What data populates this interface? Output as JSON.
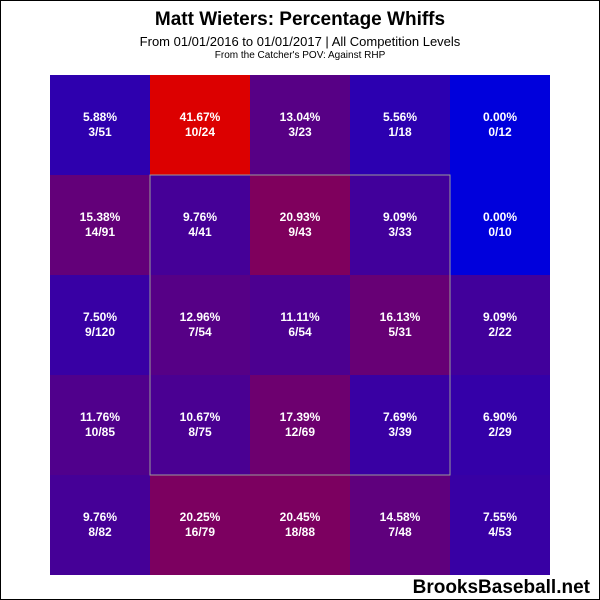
{
  "header": {
    "title": "Matt Wieters: Percentage Whiffs",
    "subtitle": "From 01/01/2016 to 01/01/2017 | All Competition Levels",
    "note": "From the Catcher's POV:  Against RHP"
  },
  "footer": {
    "brand": "BrooksBaseball.net"
  },
  "chart_data": {
    "type": "heatmap",
    "title": "Matt Wieters: Percentage Whiffs",
    "rows": 5,
    "cols": 5,
    "strike_zone": {
      "row_start": 1,
      "row_end": 3,
      "col_start": 1,
      "col_end": 3
    },
    "cells": [
      [
        {
          "pct": "5.88%",
          "frac": "3/51",
          "value": 5.88
        },
        {
          "pct": "41.67%",
          "frac": "10/24",
          "value": 41.67
        },
        {
          "pct": "13.04%",
          "frac": "3/23",
          "value": 13.04
        },
        {
          "pct": "5.56%",
          "frac": "1/18",
          "value": 5.56
        },
        {
          "pct": "0.00%",
          "frac": "0/12",
          "value": 0.0
        }
      ],
      [
        {
          "pct": "15.38%",
          "frac": "14/91",
          "value": 15.38
        },
        {
          "pct": "9.76%",
          "frac": "4/41",
          "value": 9.76
        },
        {
          "pct": "20.93%",
          "frac": "9/43",
          "value": 20.93
        },
        {
          "pct": "9.09%",
          "frac": "3/33",
          "value": 9.09
        },
        {
          "pct": "0.00%",
          "frac": "0/10",
          "value": 0.0
        }
      ],
      [
        {
          "pct": "7.50%",
          "frac": "9/120",
          "value": 7.5
        },
        {
          "pct": "12.96%",
          "frac": "7/54",
          "value": 12.96
        },
        {
          "pct": "11.11%",
          "frac": "6/54",
          "value": 11.11
        },
        {
          "pct": "16.13%",
          "frac": "5/31",
          "value": 16.13
        },
        {
          "pct": "9.09%",
          "frac": "2/22",
          "value": 9.09
        }
      ],
      [
        {
          "pct": "11.76%",
          "frac": "10/85",
          "value": 11.76
        },
        {
          "pct": "10.67%",
          "frac": "8/75",
          "value": 10.67
        },
        {
          "pct": "17.39%",
          "frac": "12/69",
          "value": 17.39
        },
        {
          "pct": "7.69%",
          "frac": "3/39",
          "value": 7.69
        },
        {
          "pct": "6.90%",
          "frac": "2/29",
          "value": 6.9
        }
      ],
      [
        {
          "pct": "9.76%",
          "frac": "8/82",
          "value": 9.76
        },
        {
          "pct": "20.25%",
          "frac": "16/79",
          "value": 20.25
        },
        {
          "pct": "20.45%",
          "frac": "18/88",
          "value": 20.45
        },
        {
          "pct": "14.58%",
          "frac": "7/48",
          "value": 14.58
        },
        {
          "pct": "7.55%",
          "frac": "4/53",
          "value": 7.55
        }
      ]
    ],
    "color_scale": {
      "low": "#0000dc",
      "high": "#dc0000",
      "min": 0,
      "max": 41.67
    }
  }
}
